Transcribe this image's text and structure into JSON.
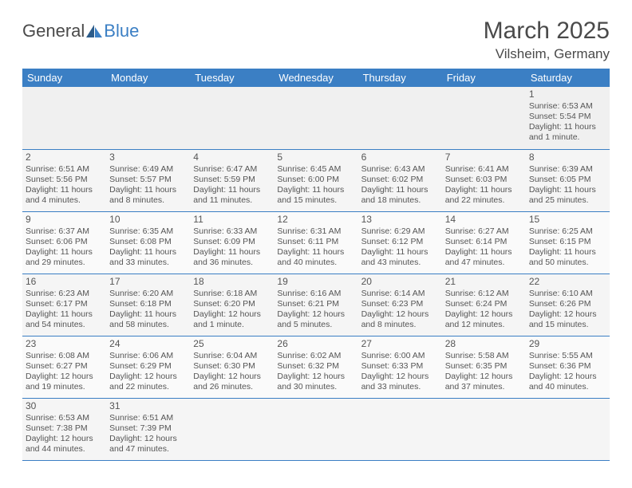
{
  "logo": {
    "part1": "General",
    "part2": "Blue"
  },
  "title": "March 2025",
  "location": "Vilsheim, Germany",
  "headers": [
    "Sunday",
    "Monday",
    "Tuesday",
    "Wednesday",
    "Thursday",
    "Friday",
    "Saturday"
  ],
  "colors": {
    "header_bg": "#3b7fc4",
    "header_text": "#ffffff",
    "body_text": "#555555",
    "page_bg": "#ffffff",
    "cell_bg": "#f5f5f5",
    "empty_bg": "#f0f0f0",
    "border": "#3b7fc4",
    "logo_blue": "#3b7fc4"
  },
  "fonts": {
    "title_size_pt": 22,
    "location_size_pt": 13,
    "header_size_pt": 10,
    "cell_size_pt": 8,
    "daynum_size_pt": 9,
    "logo_size_pt": 16
  },
  "weeks": [
    [
      null,
      null,
      null,
      null,
      null,
      null,
      {
        "n": "1",
        "sr": "Sunrise: 6:53 AM",
        "ss": "Sunset: 5:54 PM",
        "dl": "Daylight: 11 hours and 1 minute."
      }
    ],
    [
      {
        "n": "2",
        "sr": "Sunrise: 6:51 AM",
        "ss": "Sunset: 5:56 PM",
        "dl": "Daylight: 11 hours and 4 minutes."
      },
      {
        "n": "3",
        "sr": "Sunrise: 6:49 AM",
        "ss": "Sunset: 5:57 PM",
        "dl": "Daylight: 11 hours and 8 minutes."
      },
      {
        "n": "4",
        "sr": "Sunrise: 6:47 AM",
        "ss": "Sunset: 5:59 PM",
        "dl": "Daylight: 11 hours and 11 minutes."
      },
      {
        "n": "5",
        "sr": "Sunrise: 6:45 AM",
        "ss": "Sunset: 6:00 PM",
        "dl": "Daylight: 11 hours and 15 minutes."
      },
      {
        "n": "6",
        "sr": "Sunrise: 6:43 AM",
        "ss": "Sunset: 6:02 PM",
        "dl": "Daylight: 11 hours and 18 minutes."
      },
      {
        "n": "7",
        "sr": "Sunrise: 6:41 AM",
        "ss": "Sunset: 6:03 PM",
        "dl": "Daylight: 11 hours and 22 minutes."
      },
      {
        "n": "8",
        "sr": "Sunrise: 6:39 AM",
        "ss": "Sunset: 6:05 PM",
        "dl": "Daylight: 11 hours and 25 minutes."
      }
    ],
    [
      {
        "n": "9",
        "sr": "Sunrise: 6:37 AM",
        "ss": "Sunset: 6:06 PM",
        "dl": "Daylight: 11 hours and 29 minutes."
      },
      {
        "n": "10",
        "sr": "Sunrise: 6:35 AM",
        "ss": "Sunset: 6:08 PM",
        "dl": "Daylight: 11 hours and 33 minutes."
      },
      {
        "n": "11",
        "sr": "Sunrise: 6:33 AM",
        "ss": "Sunset: 6:09 PM",
        "dl": "Daylight: 11 hours and 36 minutes."
      },
      {
        "n": "12",
        "sr": "Sunrise: 6:31 AM",
        "ss": "Sunset: 6:11 PM",
        "dl": "Daylight: 11 hours and 40 minutes."
      },
      {
        "n": "13",
        "sr": "Sunrise: 6:29 AM",
        "ss": "Sunset: 6:12 PM",
        "dl": "Daylight: 11 hours and 43 minutes."
      },
      {
        "n": "14",
        "sr": "Sunrise: 6:27 AM",
        "ss": "Sunset: 6:14 PM",
        "dl": "Daylight: 11 hours and 47 minutes."
      },
      {
        "n": "15",
        "sr": "Sunrise: 6:25 AM",
        "ss": "Sunset: 6:15 PM",
        "dl": "Daylight: 11 hours and 50 minutes."
      }
    ],
    [
      {
        "n": "16",
        "sr": "Sunrise: 6:23 AM",
        "ss": "Sunset: 6:17 PM",
        "dl": "Daylight: 11 hours and 54 minutes."
      },
      {
        "n": "17",
        "sr": "Sunrise: 6:20 AM",
        "ss": "Sunset: 6:18 PM",
        "dl": "Daylight: 11 hours and 58 minutes."
      },
      {
        "n": "18",
        "sr": "Sunrise: 6:18 AM",
        "ss": "Sunset: 6:20 PM",
        "dl": "Daylight: 12 hours and 1 minute."
      },
      {
        "n": "19",
        "sr": "Sunrise: 6:16 AM",
        "ss": "Sunset: 6:21 PM",
        "dl": "Daylight: 12 hours and 5 minutes."
      },
      {
        "n": "20",
        "sr": "Sunrise: 6:14 AM",
        "ss": "Sunset: 6:23 PM",
        "dl": "Daylight: 12 hours and 8 minutes."
      },
      {
        "n": "21",
        "sr": "Sunrise: 6:12 AM",
        "ss": "Sunset: 6:24 PM",
        "dl": "Daylight: 12 hours and 12 minutes."
      },
      {
        "n": "22",
        "sr": "Sunrise: 6:10 AM",
        "ss": "Sunset: 6:26 PM",
        "dl": "Daylight: 12 hours and 15 minutes."
      }
    ],
    [
      {
        "n": "23",
        "sr": "Sunrise: 6:08 AM",
        "ss": "Sunset: 6:27 PM",
        "dl": "Daylight: 12 hours and 19 minutes."
      },
      {
        "n": "24",
        "sr": "Sunrise: 6:06 AM",
        "ss": "Sunset: 6:29 PM",
        "dl": "Daylight: 12 hours and 22 minutes."
      },
      {
        "n": "25",
        "sr": "Sunrise: 6:04 AM",
        "ss": "Sunset: 6:30 PM",
        "dl": "Daylight: 12 hours and 26 minutes."
      },
      {
        "n": "26",
        "sr": "Sunrise: 6:02 AM",
        "ss": "Sunset: 6:32 PM",
        "dl": "Daylight: 12 hours and 30 minutes."
      },
      {
        "n": "27",
        "sr": "Sunrise: 6:00 AM",
        "ss": "Sunset: 6:33 PM",
        "dl": "Daylight: 12 hours and 33 minutes."
      },
      {
        "n": "28",
        "sr": "Sunrise: 5:58 AM",
        "ss": "Sunset: 6:35 PM",
        "dl": "Daylight: 12 hours and 37 minutes."
      },
      {
        "n": "29",
        "sr": "Sunrise: 5:55 AM",
        "ss": "Sunset: 6:36 PM",
        "dl": "Daylight: 12 hours and 40 minutes."
      }
    ],
    [
      {
        "n": "30",
        "sr": "Sunrise: 6:53 AM",
        "ss": "Sunset: 7:38 PM",
        "dl": "Daylight: 12 hours and 44 minutes."
      },
      {
        "n": "31",
        "sr": "Sunrise: 6:51 AM",
        "ss": "Sunset: 7:39 PM",
        "dl": "Daylight: 12 hours and 47 minutes."
      },
      null,
      null,
      null,
      null,
      null
    ]
  ]
}
